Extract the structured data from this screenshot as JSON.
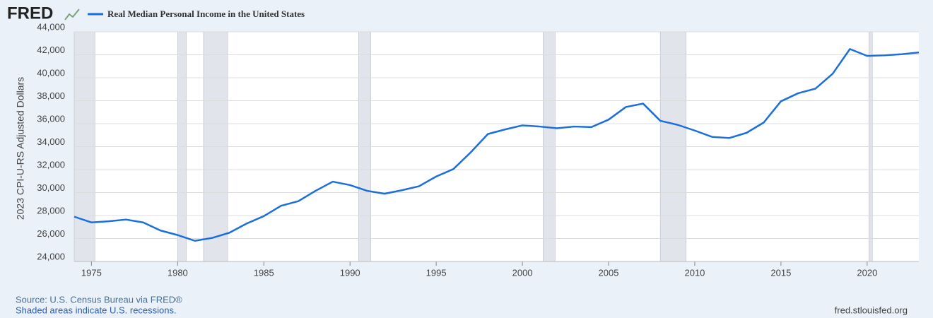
{
  "chart_data": {
    "type": "line",
    "logo": "FRED",
    "ylabel": "2023 CPI-U-RS Adjusted Dollars",
    "source": "Source: U.S. Census Bureau via FRED®",
    "note": "Shaded areas indicate U.S. recessions.",
    "site": "fred.stlouisfed.org",
    "x": [
      1974,
      1975,
      1976,
      1977,
      1978,
      1979,
      1980,
      1981,
      1982,
      1983,
      1984,
      1985,
      1986,
      1987,
      1988,
      1989,
      1990,
      1991,
      1992,
      1993,
      1994,
      1995,
      1996,
      1997,
      1998,
      1999,
      2000,
      2001,
      2002,
      2003,
      2004,
      2005,
      2006,
      2007,
      2008,
      2009,
      2010,
      2011,
      2012,
      2013,
      2014,
      2015,
      2016,
      2017,
      2018,
      2019,
      2020,
      2021,
      2022,
      2023
    ],
    "series": [
      {
        "name": "Real Median Personal Income in the United States",
        "color": "#1a6fdc",
        "values": [
          27900,
          27400,
          27500,
          27650,
          27400,
          26700,
          26300,
          25800,
          26050,
          26500,
          27300,
          27950,
          28850,
          29250,
          30150,
          30950,
          30650,
          30150,
          29900,
          30200,
          30550,
          31400,
          32050,
          33500,
          35100,
          35500,
          35850,
          35750,
          35600,
          35750,
          35700,
          36350,
          37450,
          37750,
          36250,
          35900,
          35400,
          34850,
          34750,
          35200,
          36100,
          37950,
          38650,
          39050,
          40350,
          42500,
          41900,
          41950,
          42050,
          42200
        ]
      }
    ],
    "recessions": [
      [
        1973.9,
        1975.2
      ],
      [
        1980.0,
        1980.5
      ],
      [
        1981.5,
        1982.9
      ],
      [
        1990.5,
        1991.2
      ],
      [
        2001.2,
        2001.9
      ],
      [
        2008.0,
        2009.5
      ],
      [
        2020.1,
        2020.3
      ]
    ],
    "xlim": [
      1974,
      2023
    ],
    "xticks": [
      1975,
      1980,
      1985,
      1990,
      1995,
      2000,
      2005,
      2010,
      2015,
      2020
    ],
    "ylim": [
      24000,
      44000
    ],
    "yticks": [
      {
        "value": 24000,
        "label": "24,000"
      },
      {
        "value": 26000,
        "label": "26,000"
      },
      {
        "value": 28000,
        "label": "28,000"
      },
      {
        "value": 30000,
        "label": "30,000"
      },
      {
        "value": 32000,
        "label": "32,000"
      },
      {
        "value": 34000,
        "label": "34,000"
      },
      {
        "value": 36000,
        "label": "36,000"
      },
      {
        "value": 38000,
        "label": "38,000"
      },
      {
        "value": 40000,
        "label": "40,000"
      },
      {
        "value": 42000,
        "label": "42,000"
      },
      {
        "value": 44000,
        "label": "44,000"
      }
    ],
    "grid": true
  }
}
